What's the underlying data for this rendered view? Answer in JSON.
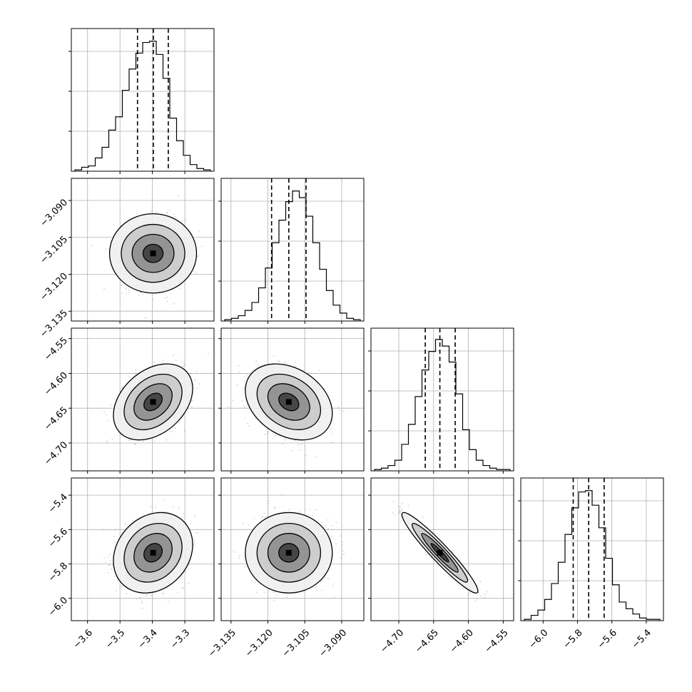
{
  "chart_data": {
    "type": "corner",
    "grid": true,
    "parameters": [
      {
        "range": [
          -3.65,
          -3.21
        ],
        "ticks": [
          "−3.6",
          "−3.5",
          "−3.4",
          "−3.3"
        ],
        "tick_values": [
          -3.6,
          -3.5,
          -3.4,
          -3.3
        ],
        "quantiles": [
          -3.446,
          -3.397,
          -3.351
        ],
        "mean": -3.398,
        "sd": 0.047,
        "hist_counts": [
          0.01,
          0.03,
          0.04,
          0.1,
          0.18,
          0.31,
          0.41,
          0.61,
          0.77,
          0.89,
          0.97,
          0.98,
          0.88,
          0.7,
          0.4,
          0.23,
          0.12,
          0.05,
          0.02,
          0.01
        ]
      },
      {
        "range": [
          -3.139,
          -3.081
        ],
        "ticks": [
          "−3.135",
          "−3.120",
          "−3.105",
          "−3.090"
        ],
        "tick_values": [
          -3.135,
          -3.12,
          -3.105,
          -3.09
        ],
        "quantiles": [
          -3.1185,
          -3.1115,
          -3.1045
        ],
        "mean": -3.1115,
        "sd": 0.0068,
        "hist_counts": [
          0.01,
          0.02,
          0.04,
          0.08,
          0.14,
          0.25,
          0.4,
          0.59,
          0.76,
          0.9,
          0.98,
          0.93,
          0.79,
          0.59,
          0.39,
          0.23,
          0.12,
          0.06,
          0.02,
          0.01
        ]
      },
      {
        "range": [
          -4.74,
          -4.535
        ],
        "ticks": [
          "−4.70",
          "−4.65",
          "−4.60",
          "−4.55"
        ],
        "tick_values": [
          -4.7,
          -4.65,
          -4.6,
          -4.55
        ],
        "quantiles": [
          -4.662,
          -4.641,
          -4.619
        ],
        "mean": -4.641,
        "sd": 0.021,
        "hist_counts": [
          0.01,
          0.02,
          0.04,
          0.08,
          0.2,
          0.35,
          0.56,
          0.76,
          0.9,
          0.99,
          0.94,
          0.82,
          0.58,
          0.31,
          0.16,
          0.08,
          0.04,
          0.02,
          0.01,
          0.01
        ]
      },
      {
        "range": [
          -6.13,
          -5.3
        ],
        "ticks": [
          "−6.0",
          "−5.8",
          "−5.6",
          "−5.4"
        ],
        "tick_values": [
          -6.0,
          -5.8,
          -5.6,
          -5.4
        ],
        "quantiles": [
          -5.825,
          -5.735,
          -5.645
        ],
        "mean": -5.735,
        "sd": 0.09,
        "hist_counts": [
          0.01,
          0.04,
          0.08,
          0.16,
          0.28,
          0.44,
          0.65,
          0.85,
          0.97,
          0.98,
          0.87,
          0.7,
          0.47,
          0.27,
          0.14,
          0.09,
          0.05,
          0.02,
          0.01,
          0.01
        ]
      }
    ],
    "correlations": {
      "1-0": 0.0,
      "2-0": 0.35,
      "2-1": -0.3,
      "3-0": 0.2,
      "3-1": 0.0,
      "3-2": -0.95
    }
  }
}
